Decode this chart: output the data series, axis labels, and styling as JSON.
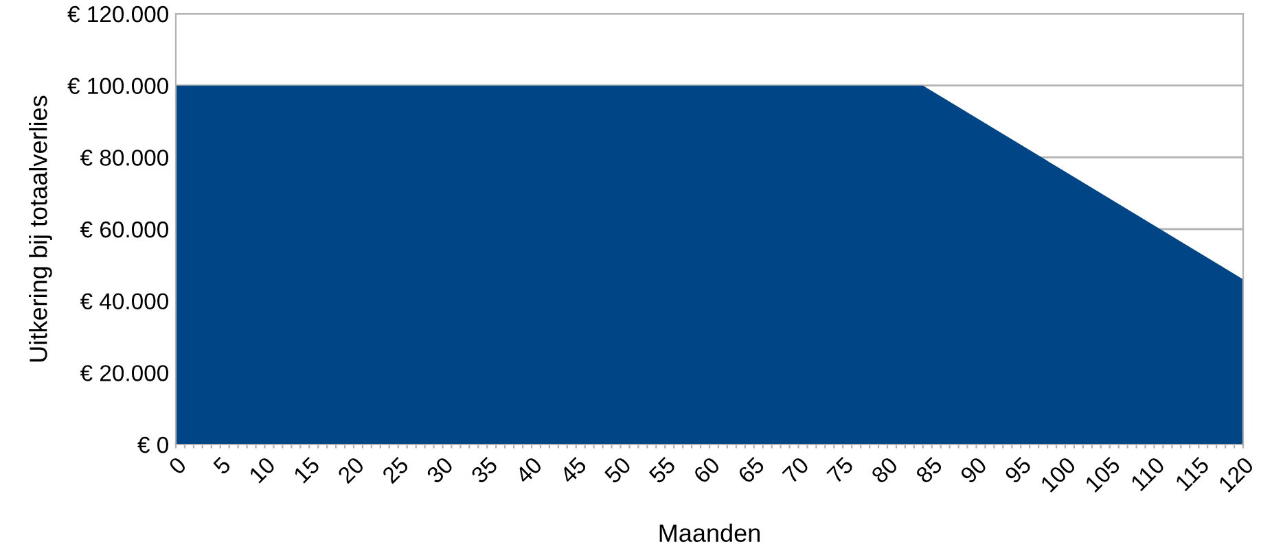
{
  "chart_data": {
    "type": "area",
    "xlabel": "Maanden",
    "ylabel": "Uitkering bij totaalverlies",
    "x": [
      0,
      84,
      120
    ],
    "values": [
      100000,
      100000,
      46000
    ],
    "color": "#004586",
    "xlim": [
      0,
      120
    ],
    "xticks": [
      0,
      {
        "value": 1,
        "label": null
      },
      {
        "value": 2,
        "label": null
      },
      {
        "value": 3,
        "label": null
      },
      {
        "value": 4,
        "label": null
      },
      5,
      {
        "value": 6,
        "label": null
      },
      {
        "value": 7,
        "label": null
      },
      {
        "value": 8,
        "label": null
      },
      {
        "value": 9,
        "label": null
      },
      10,
      {
        "value": 11,
        "label": null
      },
      {
        "value": 12,
        "label": null
      },
      {
        "value": 13,
        "label": null
      },
      {
        "value": 14,
        "label": null
      },
      15,
      {
        "value": 16,
        "label": null
      },
      {
        "value": 17,
        "label": null
      },
      {
        "value": 18,
        "label": null
      },
      {
        "value": 19,
        "label": null
      },
      20,
      {
        "value": 21,
        "label": null
      },
      {
        "value": 22,
        "label": null
      },
      {
        "value": 23,
        "label": null
      },
      {
        "value": 24,
        "label": null
      },
      25,
      {
        "value": 26,
        "label": null
      },
      {
        "value": 27,
        "label": null
      },
      {
        "value": 28,
        "label": null
      },
      {
        "value": 29,
        "label": null
      },
      30,
      {
        "value": 31,
        "label": null
      },
      {
        "value": 32,
        "label": null
      },
      {
        "value": 33,
        "label": null
      },
      {
        "value": 34,
        "label": null
      },
      35,
      {
        "value": 36,
        "label": null
      },
      {
        "value": 37,
        "label": null
      },
      {
        "value": 38,
        "label": null
      },
      {
        "value": 39,
        "label": null
      },
      40,
      {
        "value": 41,
        "label": null
      },
      {
        "value": 42,
        "label": null
      },
      {
        "value": 43,
        "label": null
      },
      {
        "value": 44,
        "label": null
      },
      45,
      {
        "value": 46,
        "label": null
      },
      {
        "value": 47,
        "label": null
      },
      {
        "value": 48,
        "label": null
      },
      {
        "value": 49,
        "label": null
      },
      50,
      {
        "value": 51,
        "label": null
      },
      {
        "value": 52,
        "label": null
      },
      {
        "value": 53,
        "label": null
      },
      {
        "value": 54,
        "label": null
      },
      55,
      {
        "value": 56,
        "label": null
      },
      {
        "value": 57,
        "label": null
      },
      {
        "value": 58,
        "label": null
      },
      {
        "value": 59,
        "label": null
      },
      60,
      {
        "value": 61,
        "label": null
      },
      {
        "value": 62,
        "label": null
      },
      {
        "value": 63,
        "label": null
      },
      {
        "value": 64,
        "label": null
      },
      65,
      {
        "value": 66,
        "label": null
      },
      {
        "value": 67,
        "label": null
      },
      {
        "value": 68,
        "label": null
      },
      {
        "value": 69,
        "label": null
      },
      70,
      {
        "value": 71,
        "label": null
      },
      {
        "value": 72,
        "label": null
      },
      {
        "value": 73,
        "label": null
      },
      {
        "value": 74,
        "label": null
      },
      75,
      {
        "value": 76,
        "label": null
      },
      {
        "value": 77,
        "label": null
      },
      {
        "value": 78,
        "label": null
      },
      {
        "value": 79,
        "label": null
      },
      80,
      {
        "value": 81,
        "label": null
      },
      {
        "value": 82,
        "label": null
      },
      {
        "value": 83,
        "label": null
      },
      {
        "value": 84,
        "label": null
      },
      85,
      {
        "value": 86,
        "label": null
      },
      {
        "value": 87,
        "label": null
      },
      {
        "value": 88,
        "label": null
      },
      {
        "value": 89,
        "label": null
      },
      90,
      {
        "value": 91,
        "label": null
      },
      {
        "value": 92,
        "label": null
      },
      {
        "value": 93,
        "label": null
      },
      {
        "value": 94,
        "label": null
      },
      95,
      {
        "value": 96,
        "label": null
      },
      {
        "value": 97,
        "label": null
      },
      {
        "value": 98,
        "label": null
      },
      {
        "value": 99,
        "label": null
      },
      100,
      {
        "value": 101,
        "label": null
      },
      {
        "value": 102,
        "label": null
      },
      {
        "value": 103,
        "label": null
      },
      {
        "value": 104,
        "label": null
      },
      105,
      {
        "value": 106,
        "label": null
      },
      {
        "value": 107,
        "label": null
      },
      {
        "value": 108,
        "label": null
      },
      {
        "value": 109,
        "label": null
      },
      110,
      {
        "value": 111,
        "label": null
      },
      {
        "value": 112,
        "label": null
      },
      {
        "value": 113,
        "label": null
      },
      {
        "value": 114,
        "label": null
      },
      115,
      {
        "value": 116,
        "label": null
      },
      {
        "value": 117,
        "label": null
      },
      {
        "value": 118,
        "label": null
      },
      {
        "value": 119,
        "label": null
      },
      120
    ],
    "ylim": [
      0,
      120000
    ],
    "yticks": [
      {
        "value": 0,
        "label": "€ 0"
      },
      {
        "value": 20000,
        "label": "€ 20.000"
      },
      {
        "value": 40000,
        "label": "€ 40.000"
      },
      {
        "value": 60000,
        "label": "€ 60.000"
      },
      {
        "value": 80000,
        "label": "€ 80.000"
      },
      {
        "value": 100000,
        "label": "€ 100.000"
      },
      {
        "value": 120000,
        "label": "€ 120.000"
      }
    ],
    "grid": "y",
    "legend": false
  }
}
